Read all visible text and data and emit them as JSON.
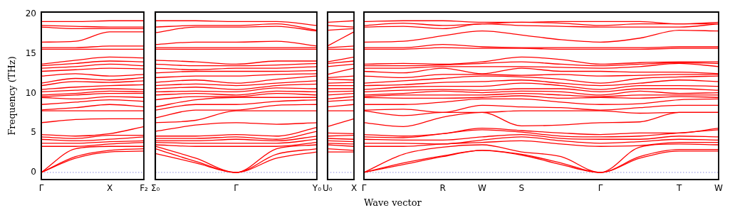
{
  "chart_data": [
    {
      "type": "line",
      "ylabel": "Frequency (THz)",
      "categories": [
        "Γ",
        null,
        "X",
        "F₂"
      ],
      "ylim": [
        -0.9,
        20.3
      ],
      "yticks": [
        0,
        5,
        10,
        15,
        20
      ],
      "ref_lines": [
        {
          "axis": "y",
          "value": 0,
          "color": "#8888dd",
          "line_style": "dotted"
        }
      ],
      "series": [
        {
          "color": "#ff0000",
          "values": [
            0,
            1.8,
            2.6,
            2.7
          ]
        },
        {
          "color": "#ff0000",
          "values": [
            0,
            2.0,
            2.8,
            3.0
          ]
        },
        {
          "color": "#ff0000",
          "values": [
            0,
            3.0,
            3.3,
            3.3
          ]
        },
        {
          "color": "#ff0000",
          "values": [
            3.3,
            3.3,
            3.6,
            3.8
          ]
        },
        {
          "color": "#ff0000",
          "values": [
            3.7,
            3.7,
            3.9,
            4.0
          ]
        },
        {
          "color": "#ff0000",
          "values": [
            4.2,
            4.0,
            4.2,
            4.5
          ]
        },
        {
          "color": "#ff0000",
          "values": [
            4.5,
            4.3,
            4.7,
            4.7
          ]
        },
        {
          "color": "#ff0000",
          "values": [
            4.8,
            4.6,
            4.9,
            5.8
          ]
        },
        {
          "color": "#ff0000",
          "values": [
            6.3,
            6.7,
            6.8,
            6.8
          ]
        },
        {
          "color": "#ff0000",
          "values": [
            7.8,
            7.8,
            7.8,
            7.8
          ]
        },
        {
          "color": "#ff0000",
          "values": [
            7.9,
            8.2,
            8.6,
            8.3
          ]
        },
        {
          "color": "#ff0000",
          "values": [
            8.6,
            8.9,
            9.2,
            9.0
          ]
        },
        {
          "color": "#ff0000",
          "values": [
            9.5,
            9.3,
            9.6,
            9.5
          ]
        },
        {
          "color": "#ff0000",
          "values": [
            9.6,
            9.8,
            10.0,
            10.0
          ]
        },
        {
          "color": "#ff0000",
          "values": [
            9.8,
            10.0,
            10.3,
            10.2
          ]
        },
        {
          "color": "#ff0000",
          "values": [
            10.2,
            10.4,
            10.6,
            10.5
          ]
        },
        {
          "color": "#ff0000",
          "values": [
            10.5,
            10.8,
            11.0,
            11.1
          ]
        },
        {
          "color": "#ff0000",
          "values": [
            11.0,
            11.5,
            11.4,
            11.6
          ]
        },
        {
          "color": "#ff0000",
          "values": [
            11.3,
            11.9,
            11.7,
            12.0
          ]
        },
        {
          "color": "#ff0000",
          "values": [
            12.2,
            12.5,
            12.2,
            12.4
          ]
        },
        {
          "color": "#ff0000",
          "values": [
            12.8,
            13.0,
            13.2,
            13.1
          ]
        },
        {
          "color": "#ff0000",
          "values": [
            13.2,
            13.4,
            13.7,
            13.5
          ]
        },
        {
          "color": "#ff0000",
          "values": [
            13.5,
            13.8,
            14.1,
            14.0
          ]
        },
        {
          "color": "#ff0000",
          "values": [
            13.7,
            14.2,
            14.6,
            14.5
          ]
        },
        {
          "color": "#ff0000",
          "values": [
            15.6,
            15.6,
            15.6,
            15.6
          ]
        },
        {
          "color": "#ff0000",
          "values": [
            15.8,
            15.8,
            16.0,
            16.0
          ]
        },
        {
          "color": "#ff0000",
          "values": [
            16.5,
            16.6,
            17.8,
            17.8
          ]
        },
        {
          "color": "#ff0000",
          "values": [
            18.4,
            18.2,
            18.2,
            18.2
          ]
        },
        {
          "color": "#ff0000",
          "values": [
            18.6,
            18.5,
            18.4,
            18.4
          ]
        },
        {
          "color": "#ff0000",
          "values": [
            19.1,
            19.1,
            19.2,
            19.2
          ]
        }
      ]
    },
    {
      "type": "line",
      "categories": [
        "Σ₀",
        null,
        "Γ",
        null,
        "Y₀"
      ],
      "ylim": [
        -0.9,
        20.3
      ],
      "tick_labels": "x",
      "ref_lines": [
        {
          "axis": "y",
          "value": 0,
          "color": "#8888dd",
          "line_style": "dotted"
        }
      ],
      "series": [
        {
          "color": "#ff0000",
          "values": [
            2.4,
            1.2,
            0,
            1.8,
            2.6
          ]
        },
        {
          "color": "#ff0000",
          "values": [
            3.0,
            1.4,
            0,
            2.3,
            3.0
          ]
        },
        {
          "color": "#ff0000",
          "values": [
            3.3,
            1.8,
            0,
            3.0,
            3.5
          ]
        },
        {
          "color": "#ff0000",
          "values": [
            3.5,
            3.3,
            3.3,
            3.3,
            3.8
          ]
        },
        {
          "color": "#ff0000",
          "values": [
            3.8,
            3.7,
            3.7,
            3.7,
            4.2
          ]
        },
        {
          "color": "#ff0000",
          "values": [
            4.0,
            4.0,
            4.2,
            4.0,
            4.6
          ]
        },
        {
          "color": "#ff0000",
          "values": [
            4.3,
            4.3,
            4.5,
            4.2,
            5.2
          ]
        },
        {
          "color": "#ff0000",
          "values": [
            4.6,
            4.6,
            4.8,
            4.6,
            5.7
          ]
        },
        {
          "color": "#ff0000",
          "values": [
            5.2,
            6.0,
            6.3,
            6.1,
            6.3
          ]
        },
        {
          "color": "#ff0000",
          "values": [
            6.3,
            6.6,
            7.8,
            7.8,
            7.8
          ]
        },
        {
          "color": "#ff0000",
          "values": [
            6.9,
            7.9,
            7.9,
            8.5,
            8.6
          ]
        },
        {
          "color": "#ff0000",
          "values": [
            7.9,
            8.6,
            8.6,
            9.0,
            9.2
          ]
        },
        {
          "color": "#ff0000",
          "values": [
            8.3,
            9.2,
            9.5,
            9.5,
            9.5
          ]
        },
        {
          "color": "#ff0000",
          "values": [
            9.2,
            9.6,
            9.6,
            10.0,
            9.8
          ]
        },
        {
          "color": "#ff0000",
          "values": [
            9.8,
            10.0,
            9.8,
            10.3,
            10.2
          ]
        },
        {
          "color": "#ff0000",
          "values": [
            10.2,
            10.3,
            10.2,
            10.7,
            10.6
          ]
        },
        {
          "color": "#ff0000",
          "values": [
            10.6,
            10.8,
            10.5,
            11.0,
            11.2
          ]
        },
        {
          "color": "#ff0000",
          "values": [
            11.0,
            11.2,
            11.0,
            11.3,
            11.6
          ]
        },
        {
          "color": "#ff0000",
          "values": [
            11.4,
            11.7,
            11.3,
            11.8,
            12.2
          ]
        },
        {
          "color": "#ff0000",
          "values": [
            12.0,
            12.2,
            12.2,
            12.4,
            12.5
          ]
        },
        {
          "color": "#ff0000",
          "values": [
            12.6,
            12.8,
            12.8,
            12.8,
            12.9
          ]
        },
        {
          "color": "#ff0000",
          "values": [
            13.2,
            13.0,
            13.2,
            13.2,
            13.4
          ]
        },
        {
          "color": "#ff0000",
          "values": [
            13.7,
            13.5,
            13.5,
            13.6,
            13.8
          ]
        },
        {
          "color": "#ff0000",
          "values": [
            14.2,
            14.0,
            13.7,
            14.1,
            14.1
          ]
        },
        {
          "color": "#ff0000",
          "values": [
            15.6,
            15.6,
            15.6,
            15.6,
            15.6
          ]
        },
        {
          "color": "#ff0000",
          "values": [
            15.8,
            15.8,
            15.8,
            15.8,
            15.8
          ]
        },
        {
          "color": "#ff0000",
          "values": [
            16.2,
            16.5,
            16.5,
            16.6,
            16.0
          ]
        },
        {
          "color": "#ff0000",
          "values": [
            17.7,
            18.4,
            18.4,
            18.5,
            17.9
          ]
        },
        {
          "color": "#ff0000",
          "values": [
            18.4,
            18.6,
            18.6,
            18.8,
            18.0
          ]
        },
        {
          "color": "#ff0000",
          "values": [
            19.2,
            19.2,
            19.1,
            19.1,
            18.6
          ]
        }
      ]
    },
    {
      "type": "line",
      "categories": [
        "U₀",
        "X"
      ],
      "ylim": [
        -0.9,
        20.3
      ],
      "tick_labels": "x",
      "ref_lines": [
        {
          "axis": "y",
          "value": 0,
          "color": "#8888dd",
          "line_style": "dotted"
        }
      ],
      "series": [
        {
          "color": "#ff0000",
          "values": [
            2.6,
            2.6
          ]
        },
        {
          "color": "#ff0000",
          "values": [
            3.0,
            2.8
          ]
        },
        {
          "color": "#ff0000",
          "values": [
            3.5,
            3.3
          ]
        },
        {
          "color": "#ff0000",
          "values": [
            3.7,
            3.6
          ]
        },
        {
          "color": "#ff0000",
          "values": [
            4.0,
            3.9
          ]
        },
        {
          "color": "#ff0000",
          "values": [
            4.3,
            4.2
          ]
        },
        {
          "color": "#ff0000",
          "values": [
            4.6,
            4.7
          ]
        },
        {
          "color": "#ff0000",
          "values": [
            5.0,
            4.9
          ]
        },
        {
          "color": "#ff0000",
          "values": [
            5.8,
            6.8
          ]
        },
        {
          "color": "#ff0000",
          "values": [
            7.8,
            7.8
          ]
        },
        {
          "color": "#ff0000",
          "values": [
            8.3,
            8.6
          ]
        },
        {
          "color": "#ff0000",
          "values": [
            9.0,
            9.2
          ]
        },
        {
          "color": "#ff0000",
          "values": [
            9.3,
            9.6
          ]
        },
        {
          "color": "#ff0000",
          "values": [
            9.8,
            10.0
          ]
        },
        {
          "color": "#ff0000",
          "values": [
            10.2,
            10.3
          ]
        },
        {
          "color": "#ff0000",
          "values": [
            10.6,
            10.6
          ]
        },
        {
          "color": "#ff0000",
          "values": [
            11.0,
            11.0
          ]
        },
        {
          "color": "#ff0000",
          "values": [
            11.3,
            11.4
          ]
        },
        {
          "color": "#ff0000",
          "values": [
            11.8,
            11.7
          ]
        },
        {
          "color": "#ff0000",
          "values": [
            12.0,
            12.2
          ]
        },
        {
          "color": "#ff0000",
          "values": [
            12.4,
            13.2
          ]
        },
        {
          "color": "#ff0000",
          "values": [
            13.4,
            13.7
          ]
        },
        {
          "color": "#ff0000",
          "values": [
            13.8,
            14.1
          ]
        },
        {
          "color": "#ff0000",
          "values": [
            14.0,
            14.6
          ]
        },
        {
          "color": "#ff0000",
          "values": [
            15.6,
            15.6
          ]
        },
        {
          "color": "#ff0000",
          "values": [
            15.8,
            16.0
          ]
        },
        {
          "color": "#ff0000",
          "values": [
            16.0,
            17.8
          ]
        },
        {
          "color": "#ff0000",
          "values": [
            18.0,
            18.2
          ]
        },
        {
          "color": "#ff0000",
          "values": [
            18.6,
            18.4
          ]
        },
        {
          "color": "#ff0000",
          "values": [
            19.0,
            19.2
          ]
        }
      ]
    },
    {
      "type": "line",
      "categories": [
        "Γ",
        null,
        "R",
        "W",
        "S",
        null,
        "Γ",
        null,
        "T",
        "W"
      ],
      "xlabel": "Wave vector",
      "ylim": [
        -0.9,
        20.3
      ],
      "tick_labels": "x",
      "ref_lines": [
        {
          "axis": "y",
          "value": 0,
          "color": "#8888dd",
          "line_style": "dotted"
        }
      ],
      "series": [
        {
          "color": "#ff0000",
          "values": [
            0,
            1.0,
            2.0,
            2.8,
            2.2,
            1.0,
            0,
            1.8,
            2.7,
            2.7
          ]
        },
        {
          "color": "#ff0000",
          "values": [
            0,
            1.2,
            2.1,
            2.8,
            2.3,
            1.2,
            0,
            2.0,
            2.9,
            2.9
          ]
        },
        {
          "color": "#ff0000",
          "values": [
            0,
            2.3,
            3.2,
            3.5,
            2.6,
            2.0,
            0,
            3.2,
            3.6,
            3.5
          ]
        },
        {
          "color": "#ff0000",
          "values": [
            3.3,
            3.3,
            3.6,
            3.8,
            4.0,
            3.6,
            3.3,
            3.4,
            3.8,
            3.8
          ]
        },
        {
          "color": "#ff0000",
          "values": [
            3.7,
            3.7,
            3.6,
            4.1,
            4.5,
            4.0,
            3.7,
            3.9,
            4.2,
            4.1
          ]
        },
        {
          "color": "#ff0000",
          "values": [
            4.2,
            4.1,
            4.1,
            4.5,
            4.8,
            4.3,
            4.2,
            4.2,
            4.6,
            4.5
          ]
        },
        {
          "color": "#ff0000",
          "values": [
            4.5,
            4.4,
            4.9,
            5.4,
            5.1,
            4.6,
            4.5,
            4.6,
            5.0,
            5.4
          ]
        },
        {
          "color": "#ff0000",
          "values": [
            4.8,
            4.6,
            4.9,
            5.6,
            5.3,
            5.0,
            4.8,
            5.0,
            5.0,
            5.6
          ]
        },
        {
          "color": "#ff0000",
          "values": [
            6.3,
            5.8,
            7.0,
            7.6,
            5.9,
            6.0,
            6.3,
            6.4,
            7.6,
            7.6
          ]
        },
        {
          "color": "#ff0000",
          "values": [
            7.8,
            7.2,
            7.6,
            7.6,
            7.8,
            7.8,
            7.8,
            7.5,
            7.6,
            7.6
          ]
        },
        {
          "color": "#ff0000",
          "values": [
            7.9,
            8.0,
            7.6,
            8.5,
            8.3,
            8.2,
            7.9,
            8.2,
            8.5,
            8.5
          ]
        },
        {
          "color": "#ff0000",
          "values": [
            8.6,
            8.6,
            8.9,
            9.3,
            9.3,
            8.9,
            8.6,
            8.7,
            9.2,
            9.3
          ]
        },
        {
          "color": "#ff0000",
          "values": [
            9.5,
            9.4,
            9.4,
            9.5,
            9.7,
            9.4,
            9.5,
            9.4,
            9.6,
            9.5
          ]
        },
        {
          "color": "#ff0000",
          "values": [
            9.6,
            9.8,
            9.8,
            9.8,
            10.0,
            9.8,
            9.6,
            9.8,
            9.8,
            9.8
          ]
        },
        {
          "color": "#ff0000",
          "values": [
            9.8,
            10.0,
            10.3,
            10.1,
            10.3,
            10.2,
            9.8,
            10.3,
            10.0,
            10.1
          ]
        },
        {
          "color": "#ff0000",
          "values": [
            10.2,
            10.4,
            10.5,
            10.4,
            10.6,
            10.6,
            10.2,
            10.6,
            10.6,
            10.4
          ]
        },
        {
          "color": "#ff0000",
          "values": [
            10.5,
            10.8,
            10.9,
            10.9,
            11.3,
            11.0,
            10.5,
            11.0,
            11.0,
            10.9
          ]
        },
        {
          "color": "#ff0000",
          "values": [
            11.0,
            11.1,
            11.4,
            11.5,
            11.7,
            11.3,
            11.0,
            11.3,
            11.7,
            11.5
          ]
        },
        {
          "color": "#ff0000",
          "values": [
            11.3,
            11.6,
            11.9,
            12.2,
            12.1,
            11.8,
            11.3,
            11.9,
            12.1,
            12.2
          ]
        },
        {
          "color": "#ff0000",
          "values": [
            12.2,
            12.0,
            12.4,
            12.4,
            12.3,
            12.4,
            12.2,
            12.3,
            12.4,
            12.4
          ]
        },
        {
          "color": "#ff0000",
          "values": [
            12.8,
            12.6,
            13.2,
            12.5,
            13.2,
            12.8,
            12.8,
            12.7,
            12.7,
            12.5
          ]
        },
        {
          "color": "#ff0000",
          "values": [
            13.2,
            13.2,
            13.4,
            13.4,
            13.4,
            13.3,
            13.2,
            13.4,
            13.8,
            13.4
          ]
        },
        {
          "color": "#ff0000",
          "values": [
            13.5,
            13.5,
            13.6,
            13.8,
            14.0,
            13.7,
            13.5,
            13.7,
            13.9,
            13.8
          ]
        },
        {
          "color": "#ff0000",
          "values": [
            13.7,
            13.8,
            13.7,
            14.0,
            14.6,
            14.3,
            13.7,
            13.9,
            14.0,
            14.0
          ]
        },
        {
          "color": "#ff0000",
          "values": [
            15.6,
            15.6,
            15.8,
            15.7,
            15.7,
            15.6,
            15.6,
            15.6,
            15.7,
            15.7
          ]
        },
        {
          "color": "#ff0000",
          "values": [
            15.8,
            15.8,
            16.2,
            15.9,
            15.8,
            15.8,
            15.8,
            15.8,
            15.9,
            15.9
          ]
        },
        {
          "color": "#ff0000",
          "values": [
            16.5,
            16.6,
            17.3,
            17.9,
            17.4,
            16.8,
            16.5,
            17.0,
            18.0,
            17.9
          ]
        },
        {
          "color": "#ff0000",
          "values": [
            18.4,
            18.5,
            18.2,
            18.8,
            18.6,
            18.5,
            18.4,
            18.4,
            18.4,
            18.8
          ]
        },
        {
          "color": "#ff0000",
          "values": [
            18.6,
            18.9,
            18.6,
            18.8,
            19.0,
            18.9,
            18.6,
            18.8,
            18.8,
            18.8
          ]
        },
        {
          "color": "#ff0000",
          "values": [
            19.1,
            19.2,
            19.2,
            19.0,
            19.0,
            19.1,
            19.1,
            19.1,
            18.8,
            19.0
          ]
        }
      ]
    }
  ]
}
